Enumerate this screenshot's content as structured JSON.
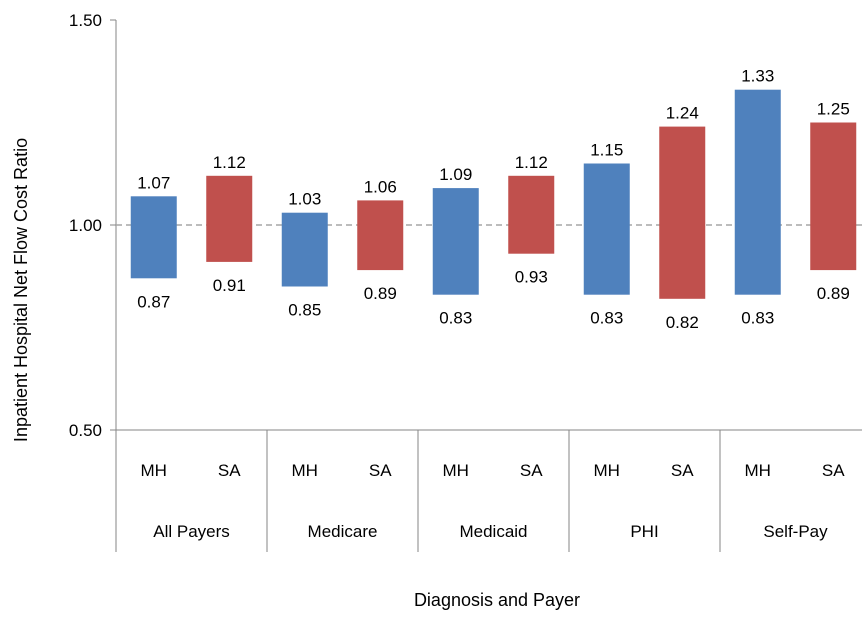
{
  "chart_data": {
    "type": "bar",
    "subtype": "floating-range",
    "xlabel": "Diagnosis and Payer",
    "ylabel": "Inpatient Hospital Net Flow Cost Ratio",
    "ylim": [
      0.5,
      1.5
    ],
    "yticks": [
      "0.50",
      "1.00",
      "1.50"
    ],
    "reference_line": {
      "y": 1.0,
      "style": "dashed",
      "color": "#a6a6a6"
    },
    "groups": [
      "All Payers",
      "Medicare",
      "Medicaid",
      "PHI",
      "Self-Pay"
    ],
    "bars": [
      {
        "group": "All Payers",
        "category": "MH",
        "low": 0.87,
        "high": 1.07,
        "low_label": "0.87",
        "high_label": "1.07"
      },
      {
        "group": "All Payers",
        "category": "SA",
        "low": 0.91,
        "high": 1.12,
        "low_label": "0.91",
        "high_label": "1.12"
      },
      {
        "group": "Medicare",
        "category": "MH",
        "low": 0.85,
        "high": 1.03,
        "low_label": "0.85",
        "high_label": "1.03"
      },
      {
        "group": "Medicare",
        "category": "SA",
        "low": 0.89,
        "high": 1.06,
        "low_label": "0.89",
        "high_label": "1.06"
      },
      {
        "group": "Medicaid",
        "category": "MH",
        "low": 0.83,
        "high": 1.09,
        "low_label": "0.83",
        "high_label": "1.09"
      },
      {
        "group": "Medicaid",
        "category": "SA",
        "low": 0.93,
        "high": 1.12,
        "low_label": "0.93",
        "high_label": "1.12"
      },
      {
        "group": "PHI",
        "category": "MH",
        "low": 0.83,
        "high": 1.15,
        "low_label": "0.83",
        "high_label": "1.15"
      },
      {
        "group": "PHI",
        "category": "SA",
        "low": 0.82,
        "high": 1.24,
        "low_label": "0.82",
        "high_label": "1.24"
      },
      {
        "group": "Self-Pay",
        "category": "MH",
        "low": 0.83,
        "high": 1.33,
        "low_label": "0.83",
        "high_label": "1.33"
      },
      {
        "group": "Self-Pay",
        "category": "SA",
        "low": 0.89,
        "high": 1.25,
        "low_label": "0.89",
        "high_label": "1.25"
      }
    ],
    "colors": {
      "MH": "#4f81bd",
      "SA": "#c0504d"
    },
    "grid": false,
    "legend": "none"
  }
}
